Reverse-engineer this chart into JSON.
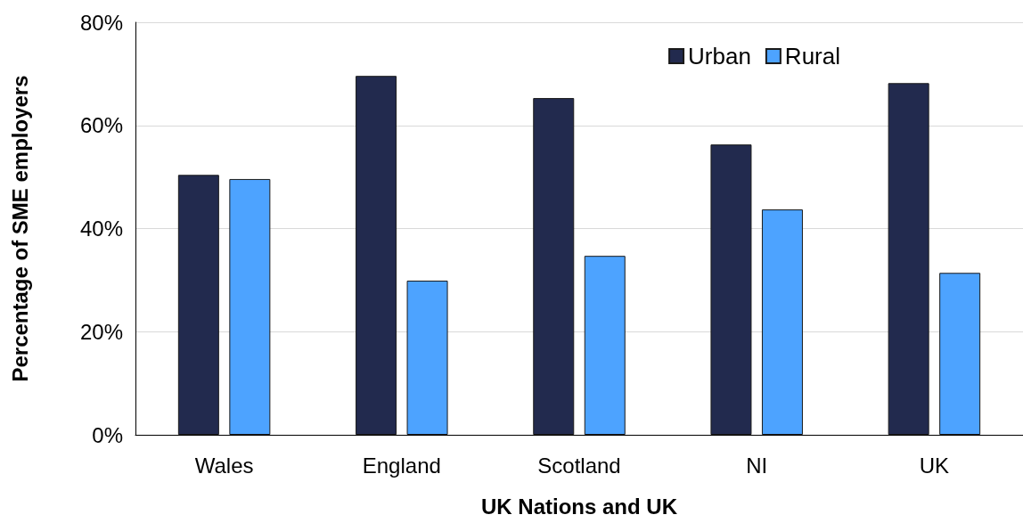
{
  "chart_data": {
    "type": "bar",
    "xlabel": "UK Nations and UK",
    "ylabel": "Percentage of SME employers",
    "categories": [
      "Wales",
      "England",
      "Scotland",
      "NI",
      "UK"
    ],
    "series": [
      {
        "name": "Urban",
        "color": "#222a4e",
        "values": [
          50.4,
          69.6,
          65.3,
          56.3,
          68.2
        ]
      },
      {
        "name": "Rural",
        "color": "#4da3ff",
        "values": [
          49.6,
          29.9,
          34.7,
          43.7,
          31.4
        ]
      }
    ],
    "ylim": [
      0,
      80
    ],
    "yticks": [
      {
        "value": 0,
        "label": "0%"
      },
      {
        "value": 20,
        "label": "20%"
      },
      {
        "value": 40,
        "label": "40%"
      },
      {
        "value": 60,
        "label": "60%"
      },
      {
        "value": 80,
        "label": "80%"
      }
    ],
    "grid": "y",
    "legend": "top right"
  }
}
